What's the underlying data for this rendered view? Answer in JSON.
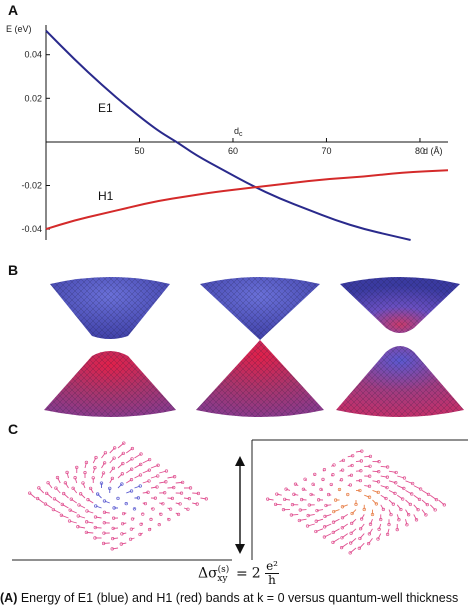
{
  "panels": {
    "a": "A",
    "b": "B",
    "c": "C"
  },
  "chart_data": {
    "type": "line",
    "ylabel": "E (eV)",
    "xlabel": "d (Å)",
    "marker_label": "d",
    "marker_sub": "c",
    "xlim": [
      40,
      83
    ],
    "ylim": [
      -0.045,
      0.055
    ],
    "xticks": [
      50,
      60,
      70,
      80
    ],
    "yticks": [
      0.04,
      0.02,
      -0.02,
      -0.04
    ],
    "ytick_labels": [
      "0.04",
      "0.02",
      "-0.02",
      "-0.04"
    ],
    "critical_x": 54,
    "series": [
      {
        "name": "E1",
        "color": "#2a2a8c",
        "x": [
          40,
          43,
          46,
          49,
          52,
          54,
          56,
          59,
          62,
          65,
          68,
          71,
          74,
          77,
          79
        ],
        "y": [
          0.051,
          0.038,
          0.026,
          0.015,
          0.005,
          0.0,
          -0.006,
          -0.013,
          -0.02,
          -0.026,
          -0.031,
          -0.036,
          -0.04,
          -0.043,
          -0.045
        ]
      },
      {
        "name": "H1",
        "color": "#d42a2a",
        "x": [
          40,
          43,
          46,
          49,
          52,
          55,
          58,
          62,
          66,
          70,
          74,
          78,
          83
        ],
        "y": [
          -0.04,
          -0.036,
          -0.033,
          -0.03,
          -0.027,
          -0.025,
          -0.023,
          -0.021,
          -0.019,
          -0.017,
          -0.016,
          -0.014,
          -0.013
        ]
      }
    ]
  },
  "formula": {
    "lhs_prefix": "Δσ",
    "lhs_sup": "(s)",
    "lhs_sub": "xy",
    "equals": "=",
    "coef": "2",
    "num": "e²",
    "den": "h"
  },
  "caption": {
    "bold": "(A)",
    "text": " Energy of E1 (blue) and H1 (red) bands at k = 0 versus quantum-well thickness"
  }
}
